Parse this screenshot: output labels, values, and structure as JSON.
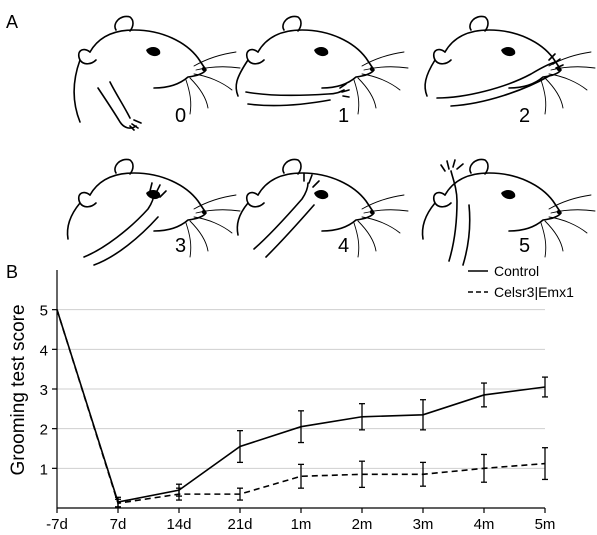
{
  "panel_a": {
    "letter": "A",
    "scores": [
      "0",
      "1",
      "2",
      "3",
      "4",
      "5"
    ]
  },
  "chart_data": {
    "panel_letter": "B",
    "type": "line",
    "title": "",
    "xlabel": "",
    "ylabel": "Grooming test score",
    "categories": [
      "-7d",
      "7d",
      "14d",
      "21d",
      "1m",
      "2m",
      "3m",
      "4m",
      "5m"
    ],
    "yticks": [
      "1",
      "2",
      "3",
      "4",
      "5"
    ],
    "ylim": [
      0,
      6
    ],
    "grid": "horizontal",
    "legend": "top-right",
    "series": [
      {
        "name": "Control",
        "style": "solid",
        "values": [
          5.0,
          0.15,
          0.45,
          1.55,
          2.05,
          2.3,
          2.35,
          2.85,
          3.05
        ],
        "errors": [
          0,
          0.12,
          0.15,
          0.4,
          0.4,
          0.33,
          0.38,
          0.3,
          0.25
        ]
      },
      {
        "name": "Celsr3|Emx1",
        "style": "dashed",
        "values": [
          5.0,
          0.12,
          0.35,
          0.35,
          0.8,
          0.85,
          0.85,
          1.0,
          1.12
        ],
        "errors": [
          0,
          0.1,
          0.15,
          0.15,
          0.3,
          0.33,
          0.3,
          0.35,
          0.4
        ]
      }
    ]
  }
}
